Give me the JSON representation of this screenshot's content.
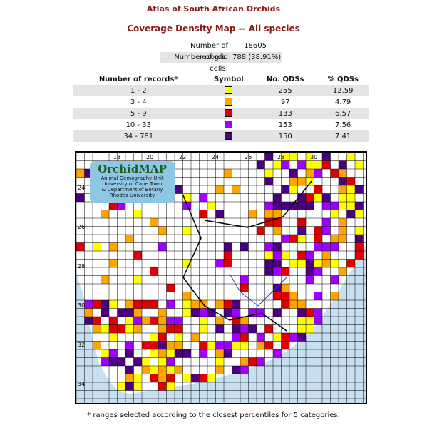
{
  "header": {
    "title": "Atlas of South African Orchids",
    "subtitle": "Coverage Density Map -- All species"
  },
  "stats": {
    "records_label": "Number of records:",
    "records_value": "18605",
    "cells_label": "Number of grid cells:",
    "cells_value": "788 (38.91%)"
  },
  "legend": {
    "headers": [
      "Number of records*",
      "Symbol",
      "No. QDSs",
      "% QDSs"
    ],
    "rows": [
      {
        "range": "1 - 2",
        "color": "#ffff00",
        "count": "255",
        "pct": "12.59"
      },
      {
        "range": "3 - 4",
        "color": "#ffa500",
        "count": "97",
        "pct": "4.79"
      },
      {
        "range": "5 - 9",
        "color": "#e00000",
        "count": "133",
        "pct": "6.57"
      },
      {
        "range": "10 - 33",
        "color": "#a000ff",
        "count": "153",
        "pct": "7.56"
      },
      {
        "range": "34 - 781",
        "color": "#4b0082",
        "count": "150",
        "pct": "7.41"
      }
    ]
  },
  "map": {
    "lon_labels": [
      "18",
      "20",
      "22",
      "24",
      "26",
      "28",
      "30"
    ],
    "lat_labels": [
      "24",
      "26",
      "28",
      "30",
      "32",
      "34"
    ],
    "sea_color": "#c7dff0",
    "land_color": "#ffffff"
  },
  "logo": {
    "title": "OrchidMAP",
    "line1": "Animal Demography Unit",
    "line2": "University of Cape Town",
    "line3": "& Department of Botany",
    "line4": "Rhodes University"
  },
  "footnote": "* ranges selected according to the closest percentiles for 5 categories."
}
